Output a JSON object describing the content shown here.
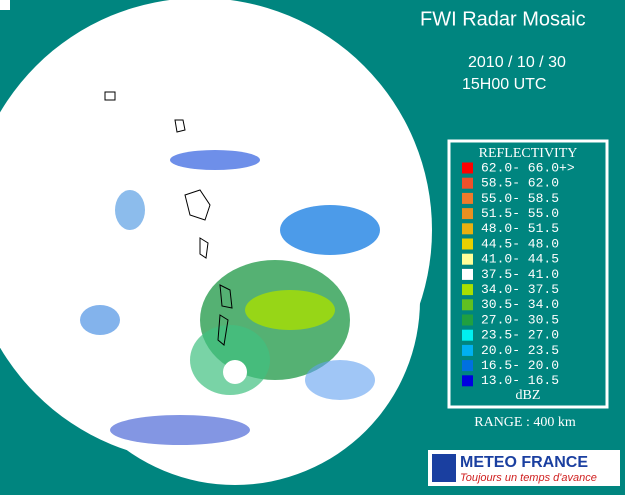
{
  "header": {
    "title": "FWI Radar Mosaic",
    "date": "2010 / 10 / 30",
    "time": "15H00 UTC"
  },
  "legend": {
    "title": "REFLECTIVITY",
    "unit": "dBZ",
    "entries": [
      {
        "label": "62.0- 66.0+>",
        "color": "#ff0000"
      },
      {
        "label": "58.5- 62.0",
        "color": "#f0502a"
      },
      {
        "label": "55.0- 58.5",
        "color": "#f07a2a"
      },
      {
        "label": "51.5- 55.0",
        "color": "#e89020"
      },
      {
        "label": "48.0- 51.5",
        "color": "#e8b010"
      },
      {
        "label": "44.5- 48.0",
        "color": "#e8d000"
      },
      {
        "label": "41.0- 44.5",
        "color": "#ffff99"
      },
      {
        "label": "37.5- 41.0",
        "color": "#ffffff"
      },
      {
        "label": "34.0- 37.5",
        "color": "#a8e000"
      },
      {
        "label": "30.5- 34.0",
        "color": "#60c020"
      },
      {
        "label": "27.0- 30.5",
        "color": "#20a040"
      },
      {
        "label": "23.5- 27.0",
        "color": "#00f0f0"
      },
      {
        "label": "20.0- 23.5",
        "color": "#00b0f0"
      },
      {
        "label": "16.5- 20.0",
        "color": "#0070e0"
      },
      {
        "label": "13.0- 16.5",
        "color": "#0000e0"
      }
    ]
  },
  "range": "RANGE : 400 km",
  "logo": {
    "name": "METEO FRANCE",
    "slogan": "Toujours un temps d'avance"
  }
}
